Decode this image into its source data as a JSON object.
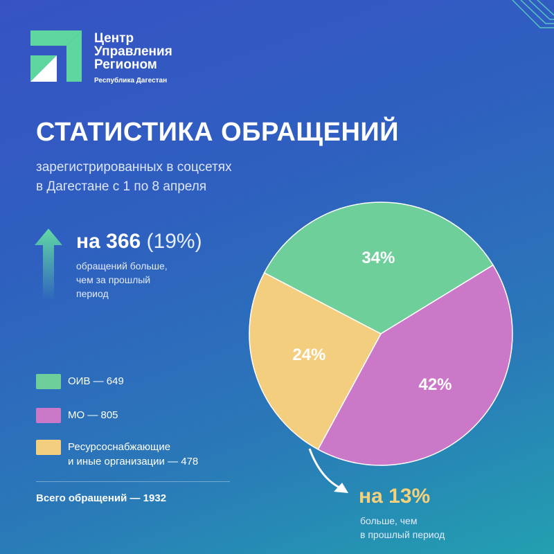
{
  "brand": {
    "name_lines": [
      "Центр",
      "Управления",
      "Регионом"
    ],
    "region": "Республика Дагестан",
    "logo_colors": [
      "#5fd6a0",
      "#ffffff"
    ]
  },
  "header": {
    "title": "СТАТИСТИКА ОБРАЩЕНИЙ",
    "subtitle_lines": [
      "зарегистрированных в соцсетях",
      "в Дагестане с 1 по 8 апреля"
    ]
  },
  "stat_increase": {
    "icon": "arrow-up-icon",
    "prefix": "на 366",
    "percent": "(19%)",
    "desc_lines": [
      "обращений больше,",
      "чем за прошлый",
      "период"
    ]
  },
  "legend": {
    "items": [
      {
        "label_lines": [
          "ОИВ — 649"
        ],
        "color": "#6fcf9b"
      },
      {
        "label_lines": [
          "МО — 805"
        ],
        "color": "#cc78c9"
      },
      {
        "label_lines": [
          "Ресурсоснабжающие",
          "и иные организации — 478"
        ],
        "color": "#f4ce7f"
      }
    ],
    "total": "Всего обращений — 1932"
  },
  "stat_resource": {
    "icon": "curved-arrow-icon",
    "head": "на 13%",
    "desc_lines": [
      "больше, чем",
      "в прошлый период"
    ]
  },
  "chart_data": {
    "type": "pie",
    "categories": [
      "ОИВ",
      "МО",
      "Ресурсоснабжающие и иные организации"
    ],
    "values": [
      649,
      805,
      478
    ],
    "percent_labels": [
      "34%",
      "42%",
      "24%"
    ],
    "colors": [
      "#6fcf9b",
      "#cc78c9",
      "#f4ce7f"
    ],
    "total": 1932
  }
}
